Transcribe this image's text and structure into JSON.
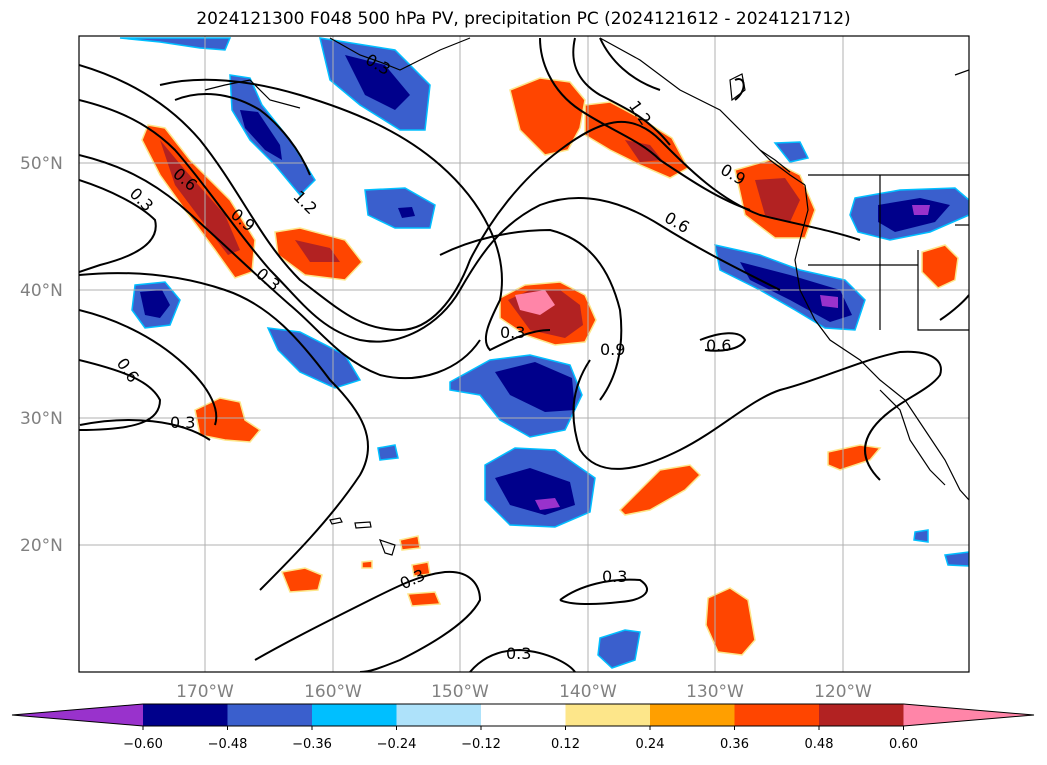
{
  "title": "2024121300 F048 500 hPa PV, precipitation PC (2024121612 - 2024121712)",
  "map": {
    "lat_labels": [
      "50°N",
      "40°N",
      "30°N",
      "20°N"
    ],
    "lon_labels": [
      "170°W",
      "160°W",
      "150°W",
      "140°W",
      "130°W",
      "120°W"
    ],
    "contour_labels": [
      "0.3",
      "0.6",
      "0.9",
      "1.2",
      "0.3",
      "0.3",
      "0.9",
      "1.2",
      "0.6",
      "0.6",
      "0.9",
      "0.3",
      "0.6",
      "0.3",
      "0.3",
      "0.3",
      "0.3",
      "0.3",
      "0.6"
    ]
  },
  "colorbar": {
    "levels": [
      "−0.60",
      "−0.48",
      "−0.36",
      "−0.24",
      "−0.12",
      "0.12",
      "0.24",
      "0.36",
      "0.48",
      "0.60"
    ],
    "colors": [
      "#9932cc",
      "#00008b",
      "#3a5fcd",
      "#00bfff",
      "#aee2fa",
      "#ffffff",
      "#fde68a",
      "#ff9f00",
      "#ff4500",
      "#b22222",
      "#ff85a8"
    ]
  }
}
